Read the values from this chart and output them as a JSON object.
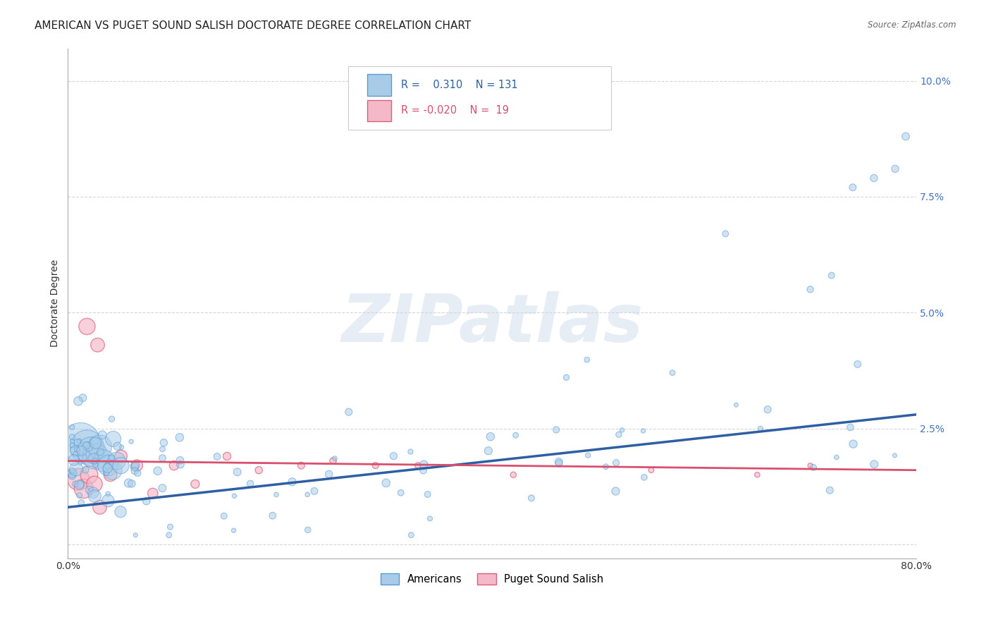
{
  "title": "AMERICAN VS PUGET SOUND SALISH DOCTORATE DEGREE CORRELATION CHART",
  "source": "Source: ZipAtlas.com",
  "ylabel": "Doctorate Degree",
  "xmin": 0.0,
  "xmax": 0.8,
  "ymin": -0.003,
  "ymax": 0.107,
  "legend_blue_r": "0.310",
  "legend_blue_n": "131",
  "legend_pink_r": "-0.020",
  "legend_pink_n": "19",
  "watermark": "ZIPatlas",
  "blue_color": "#a8cce8",
  "blue_edge_color": "#5b9bd5",
  "pink_color": "#f4b8c8",
  "pink_edge_color": "#d9607a",
  "trend_blue_color": "#2e5fa3",
  "trend_pink_color": "#d94f6e",
  "blue_trend_x0": 0.0,
  "blue_trend_y0": 0.008,
  "blue_trend_x1": 0.8,
  "blue_trend_y1": 0.028,
  "pink_trend_x0": 0.0,
  "pink_trend_y0": 0.018,
  "pink_trend_x1": 0.8,
  "pink_trend_y1": 0.016,
  "background_color": "#ffffff",
  "grid_color": "#cccccc",
  "title_fontsize": 11,
  "axis_label_fontsize": 10,
  "tick_fontsize": 10,
  "tick_color": "#4472c4",
  "ylabel_color": "#333333"
}
